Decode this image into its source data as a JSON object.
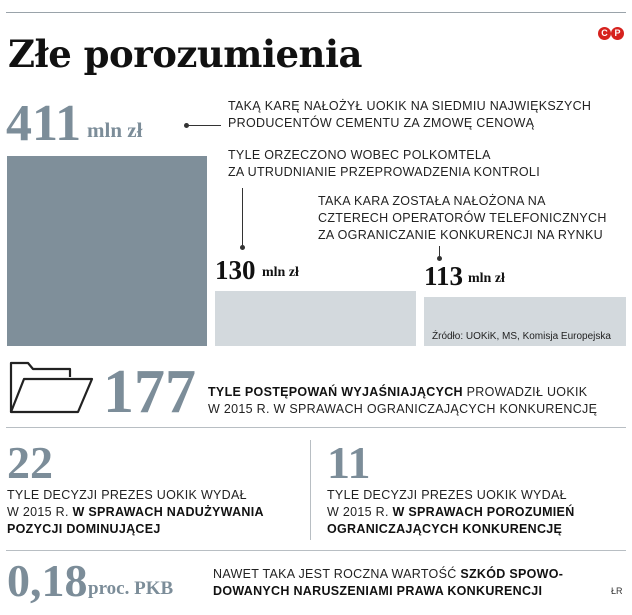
{
  "header": {
    "title": "Złe porozumienia",
    "badge_c": "C",
    "badge_p": "P"
  },
  "chart_data": {
    "type": "bar",
    "title": "Złe porozumienia",
    "unit": "mln zł",
    "categories": [
      "cement",
      "polkomtel",
      "operatorzy"
    ],
    "values": [
      411,
      130,
      113
    ],
    "value_labels": [
      "411",
      "130",
      "113"
    ],
    "descriptions": [
      "Taką karę nałożył UOKiK na siedmiu największych producentów cementu za zmowę cenową",
      "Tyle orzeczono wobec Polkomtela za utrudnianie przeprowadzenia kontroli",
      "Taka kara została nałożona na czterech operatorów telefonicznych za ograniczanie konkurencji na rynku"
    ],
    "colors": [
      "#7f8f9a",
      "#d3d9dd",
      "#d3d9dd"
    ],
    "source": "Źródło: UOKiK, MS, Komisja Europejska"
  },
  "bar1": {
    "value": "411",
    "unit": "mln zł",
    "desc_line1": "Taką karę nałożył UOKiK na siedmiu największych",
    "desc_line2": "producentów cementu za zmowę cenową"
  },
  "bar2": {
    "value": "130",
    "unit": "mln zł",
    "desc_line1": "Tyle orzeczono wobec Polkomtela",
    "desc_line2": "za utrudnianie przeprowadzenia kontroli"
  },
  "bar3": {
    "value": "113",
    "unit": "mln zł",
    "desc_line1": "Taka kara została nałożona na",
    "desc_line2": "czterech operatorów telefonicznych",
    "desc_line3": "za ograniczanie konkurencji na rynku"
  },
  "source": "Źródło: UOKiK, MS, Komisja Europejska",
  "stat177": {
    "value": "177",
    "bold": "Tyle postępowań wyjaśniających",
    "rest_line1": " prowadził UOKiK",
    "line2": "w 2015 r. w sprawach ograniczających konkurencję",
    "icon": "folder-icon"
  },
  "stat22": {
    "value": "22",
    "line1": "Tyle decyzji prezes UOKiK wydał",
    "line2_plain": "w 2015 r. ",
    "line2_bold": "w sprawach nadużywania",
    "line3_bold": "pozycji dominującej"
  },
  "stat11": {
    "value": "11",
    "line1": "Tyle decyzji prezes UOKiK wydał",
    "line2_plain": "w 2015 r. ",
    "line2_bold": "w sprawach porozumień",
    "line3_bold": "ograniczających konkurencję"
  },
  "stat018": {
    "value": "0,18",
    "unit": "proc. PKB",
    "line1_plain": "Nawet taka jest roczna wartość ",
    "line1_bold": "szkód spowo-",
    "line2_bold": "dowanych naruszeniami prawa konkurencji"
  },
  "credit": "ŁR",
  "colors": {
    "dark_bar": "#7f8f9a",
    "light_bar": "#d3d9dd",
    "numbers": "#7c8d99",
    "badge": "#d6221e"
  }
}
